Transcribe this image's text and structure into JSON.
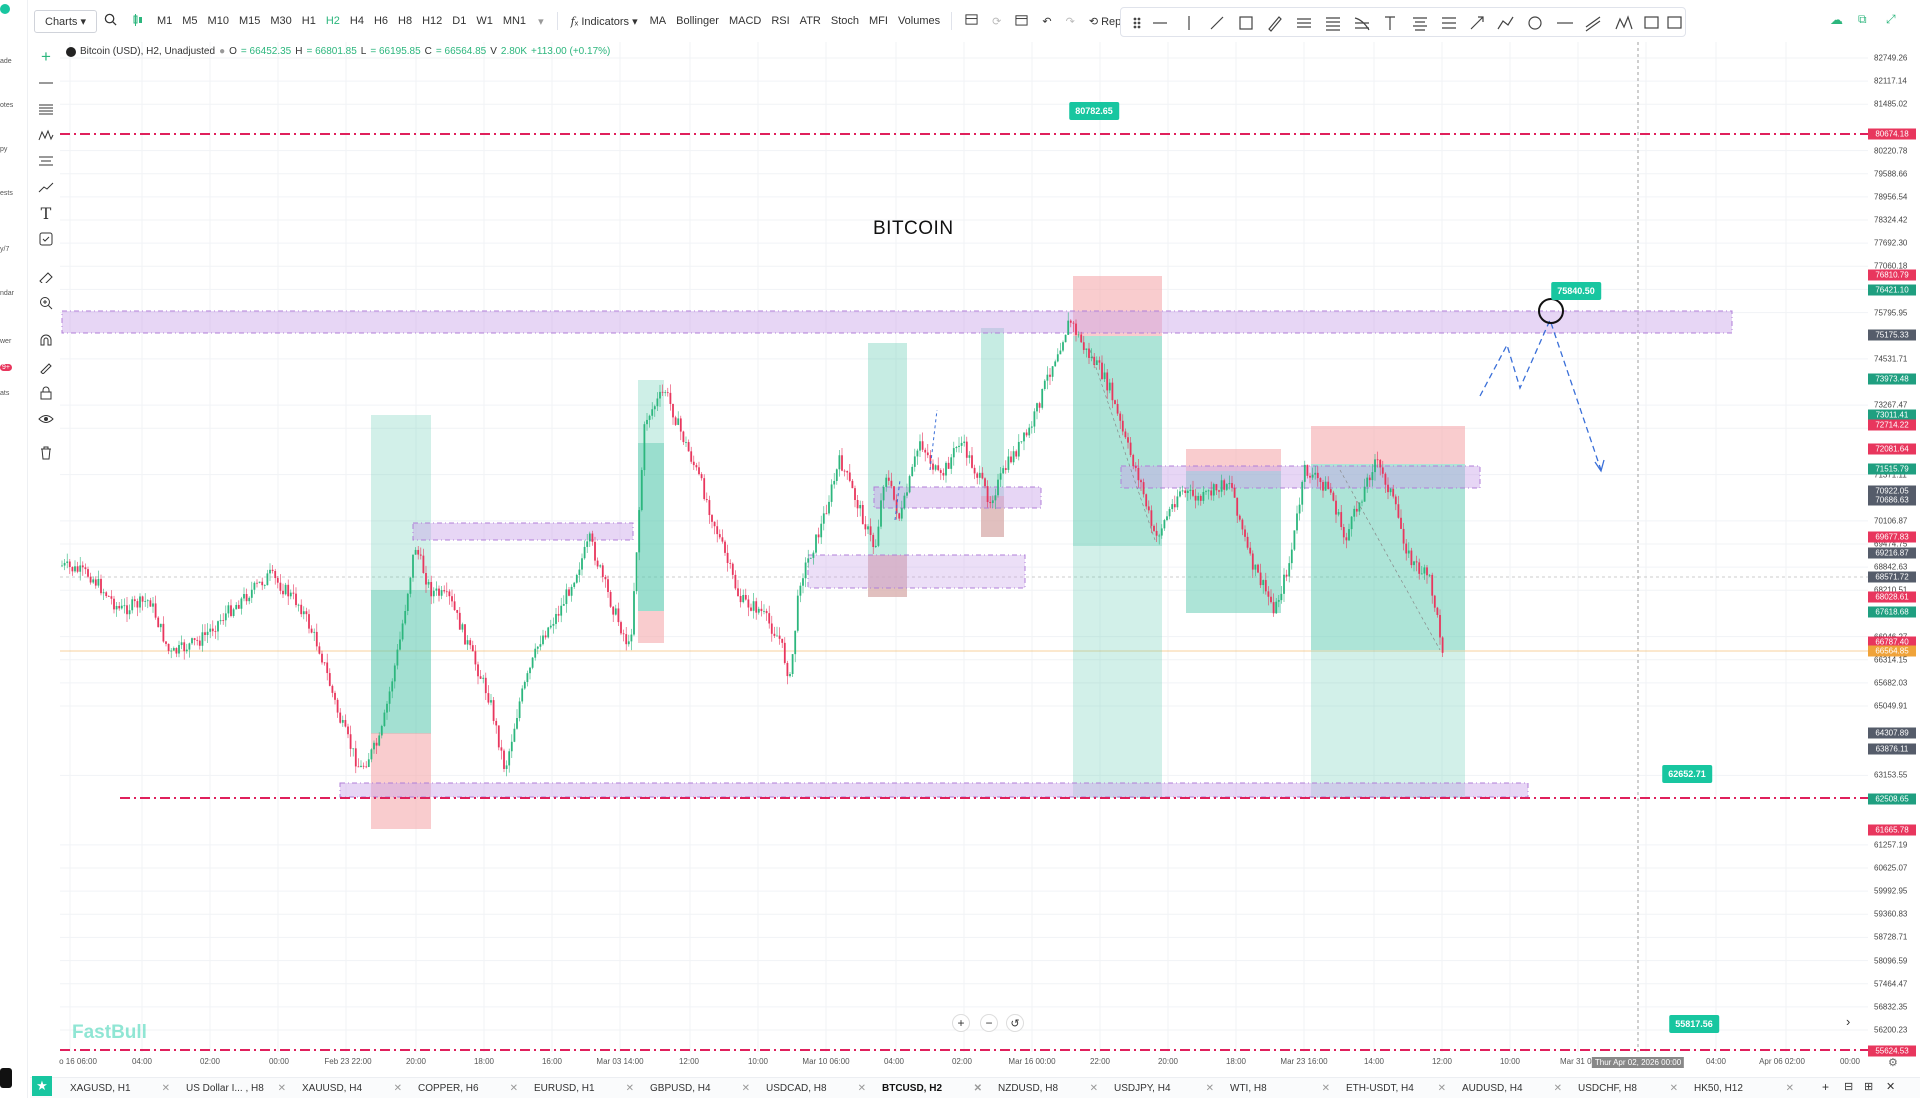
{
  "toolbar": {
    "charts": "Charts",
    "timeframes": [
      "M1",
      "M5",
      "M10",
      "M15",
      "M30",
      "H1",
      "H2",
      "H4",
      "H6",
      "H8",
      "H12",
      "D1",
      "W1",
      "MN1"
    ],
    "active_timeframe": "H2",
    "indicators": "Indicators",
    "studies": [
      "MA",
      "Bollinger",
      "MACD",
      "RSI",
      "ATR",
      "Stoch",
      "MFI",
      "Volumes"
    ],
    "replay": "Replay"
  },
  "left_partial_labels": [
    "ade",
    "otes",
    "py",
    "ests",
    "y/7",
    "ndar",
    "wer",
    "9+",
    "ats"
  ],
  "legend": {
    "symbol": "Bitcoin (USD), H2, Unadjusted",
    "o_label": "O",
    "o": "= 66452.35",
    "h_label": "H",
    "h": "= 66801.85",
    "l_label": "L",
    "l": "= 66195.85",
    "c_label": "C",
    "c": "= 66564.85",
    "v_label": "V",
    "v": "2.80K",
    "change": "+113.00 (+0.17%)"
  },
  "chart_title": "BITCOIN",
  "watermark": "FastBull",
  "price_scale": [
    "82749.26",
    "82117.14",
    "81485.02",
    "80220.78",
    "79588.66",
    "78956.54",
    "78324.42",
    "77692.30",
    "77060.18",
    "76428.06",
    "75795.95",
    "74531.71",
    "73267.47",
    "72635.35",
    "71371.11",
    "70106.87",
    "69474.75",
    "68842.63",
    "68210.51",
    "66946.27",
    "66314.15",
    "65682.03",
    "65049.91",
    "63153.55",
    "61257.19",
    "60625.07",
    "59992.95",
    "59360.83",
    "58728.71",
    "58096.59",
    "57464.47",
    "56832.35",
    "56200.23"
  ],
  "price_badges": [
    {
      "text": "80674.18",
      "color": "#e8365d"
    },
    {
      "text": "76810.79",
      "color": "#e8365d"
    },
    {
      "text": "76421.10",
      "color": "#1f9f80"
    },
    {
      "text": "75175.33",
      "color": "#555c6a"
    },
    {
      "text": "73973.48",
      "color": "#1f9f80"
    },
    {
      "text": "73011.41",
      "color": "#1f9f80"
    },
    {
      "text": "72714.22",
      "color": "#e8365d"
    },
    {
      "text": "72081.64",
      "color": "#e8365d"
    },
    {
      "text": "71515.79",
      "color": "#1f9f80"
    },
    {
      "text": "70922.05",
      "color": "#555c6a"
    },
    {
      "text": "70686.63",
      "color": "#555c6a"
    },
    {
      "text": "69677.83",
      "color": "#e8365d"
    },
    {
      "text": "69216.87",
      "color": "#555c6a"
    },
    {
      "text": "68571.72",
      "color": "#555c6a"
    },
    {
      "text": "68028.61",
      "color": "#e8365d"
    },
    {
      "text": "67618.68",
      "color": "#1f9f80"
    },
    {
      "text": "66787.40",
      "color": "#e8365d"
    },
    {
      "text": "66564.85",
      "color": "#f0a33a"
    },
    {
      "text": "64307.89",
      "color": "#555c6a"
    },
    {
      "text": "63876.11",
      "color": "#555c6a"
    },
    {
      "text": "62508.65",
      "color": "#1f9f80"
    },
    {
      "text": "61665.78",
      "color": "#e8365d"
    },
    {
      "text": "55624.53",
      "color": "#e8365d"
    }
  ],
  "annotations": [
    {
      "text": "80782.65"
    },
    {
      "text": "75840.50"
    },
    {
      "text": "62652.71"
    },
    {
      "text": "55817.56"
    }
  ],
  "time_axis": [
    "o 16 06:00",
    "04:00",
    "02:00",
    "00:00",
    "Feb 23 22:00",
    "20:00",
    "18:00",
    "16:00",
    "Mar 03 14:00",
    "12:00",
    "10:00",
    "Mar 10 06:00",
    "04:00",
    "02:00",
    "Mar 16 00:00",
    "22:00",
    "20:00",
    "18:00",
    "Mar 23 16:00",
    "14:00",
    "12:00",
    "10:00",
    "Mar 31 08",
    "04:00",
    "Apr 06 02:00",
    "00:00"
  ],
  "time_hover": "Thur Apr 02, 2026 00:00",
  "tabs": [
    {
      "label": "XAGUSD, H1"
    },
    {
      "label": "US Dollar I... , H8"
    },
    {
      "label": "XAUUSD, H4"
    },
    {
      "label": "COPPER, H6"
    },
    {
      "label": "EURUSD, H1"
    },
    {
      "label": "GBPUSD, H4"
    },
    {
      "label": "USDCAD, H8"
    },
    {
      "label": "BTCUSD, H2"
    },
    {
      "label": "NZDUSD, H8"
    },
    {
      "label": "USDJPY, H4"
    },
    {
      "label": "WTI, H8"
    },
    {
      "label": "ETH-USDT, H4"
    },
    {
      "label": "AUDUSD, H4"
    },
    {
      "label": "USDCHF, H8"
    },
    {
      "label": "HK50, H12"
    }
  ],
  "active_tab": "BTCUSD, H2",
  "colors": {
    "accent": "#18c6a0",
    "up": "#2cb67d",
    "down": "#e8365d",
    "zone": "#c9a4e8",
    "level": "#e0205c",
    "arrow": "#3a6fd8"
  }
}
